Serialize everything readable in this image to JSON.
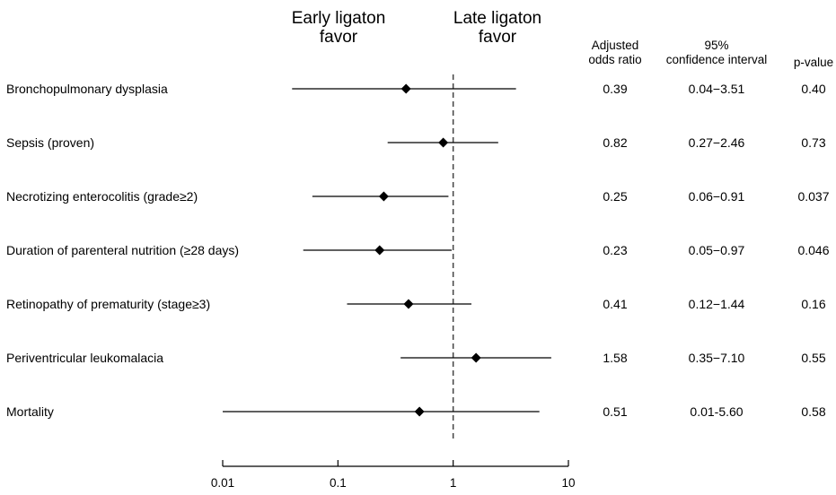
{
  "chart_data": {
    "type": "forest",
    "x_scale": "log",
    "xlim": [
      0.01,
      10
    ],
    "reference_line": 1,
    "ticks": [
      "0.01",
      "0.1",
      "1",
      "10"
    ],
    "tick_values": [
      0.01,
      0.1,
      1,
      10
    ],
    "favor_left": [
      "Early ligaton",
      "favor"
    ],
    "favor_right": [
      "Late ligaton",
      "favor"
    ],
    "columns": {
      "or": [
        "Adjusted",
        "odds ratio"
      ],
      "ci": [
        "95%",
        "confidence interval"
      ],
      "p": [
        "p-value"
      ]
    },
    "rows": [
      {
        "label": "Bronchopulmonary dysplasia",
        "or": 0.39,
        "lo": 0.04,
        "hi": 3.51,
        "or_text": "0.39",
        "ci_text": "0.04−3.51",
        "p_text": "0.40"
      },
      {
        "label": "Sepsis (proven)",
        "or": 0.82,
        "lo": 0.27,
        "hi": 2.46,
        "or_text": "0.82",
        "ci_text": "0.27−2.46",
        "p_text": "0.73"
      },
      {
        "label": "Necrotizing enterocolitis (grade≥2)",
        "or": 0.25,
        "lo": 0.06,
        "hi": 0.91,
        "or_text": "0.25",
        "ci_text": "0.06−0.91",
        "p_text": "0.037"
      },
      {
        "label": "Duration of parenteral nutrition (≥28 days)",
        "or": 0.23,
        "lo": 0.05,
        "hi": 0.97,
        "or_text": "0.23",
        "ci_text": "0.05−0.97",
        "p_text": "0.046"
      },
      {
        "label": "Retinopathy of prematurity (stage≥3)",
        "or": 0.41,
        "lo": 0.12,
        "hi": 1.44,
        "or_text": "0.41",
        "ci_text": "0.12−1.44",
        "p_text": "0.16"
      },
      {
        "label": "Periventricular leukomalacia",
        "or": 1.58,
        "lo": 0.35,
        "hi": 7.1,
        "or_text": "1.58",
        "ci_text": "0.35−7.10",
        "p_text": "0.55"
      },
      {
        "label": "Mortality",
        "or": 0.51,
        "lo": 0.01,
        "hi": 5.6,
        "or_text": "0.51",
        "ci_text": "0.01-5.60",
        "p_text": "0.58"
      }
    ],
    "colors": {
      "marker": "#000000",
      "line": "#000000",
      "reference": "#444444"
    }
  }
}
